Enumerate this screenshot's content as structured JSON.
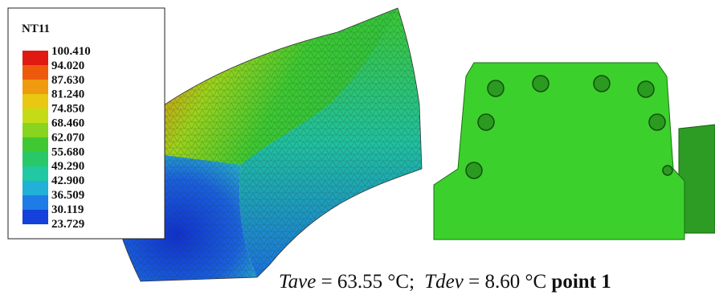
{
  "legend": {
    "title": "NT11",
    "labels": [
      "100.410",
      "94.020",
      "87.630",
      "81.240",
      "74.850",
      "68.460",
      "62.070",
      "55.680",
      "49.290",
      "42.900",
      "36.509",
      "30.119",
      "23.729"
    ]
  },
  "caption": {
    "tave_symbol": "Tave",
    "tave_value": "= 63.55 °C;",
    "tdev_symbol": "Tdev",
    "tdev_value": "= 8.60 °C",
    "point": "point 1"
  }
}
